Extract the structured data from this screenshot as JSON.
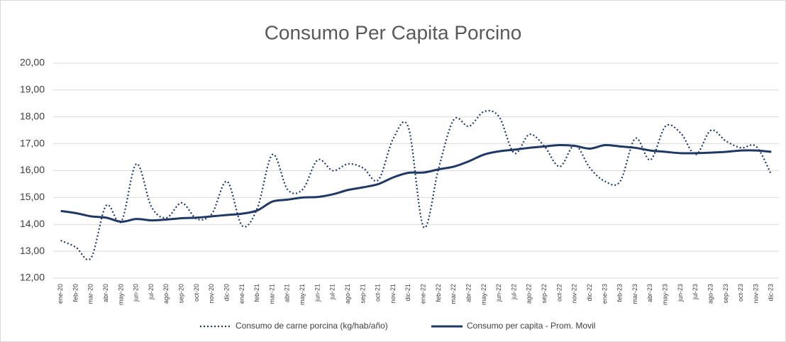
{
  "chart_data": {
    "type": "line",
    "title": "Consumo Per Capita Porcino",
    "categories": [
      "ene-20",
      "feb-20",
      "mar-20",
      "abr-20",
      "may-20",
      "jun-20",
      "jul-20",
      "ago-20",
      "sep-20",
      "oct-20",
      "nov-20",
      "dic-20",
      "ene-21",
      "feb-21",
      "mar-21",
      "abr-21",
      "may-21",
      "jun-21",
      "jul-21",
      "ago-21",
      "sep-21",
      "oct-21",
      "nov-21",
      "dic-21",
      "ene-22",
      "feb-22",
      "mar-22",
      "abr-22",
      "may-22",
      "jun-22",
      "jul-22",
      "ago-22",
      "sep-22",
      "oct-22",
      "nov-22",
      "dic-22",
      "ene-23",
      "feb-23",
      "mar-23",
      "abr-23",
      "may-23",
      "jun-23",
      "jul-23",
      "ago-23",
      "sep-23",
      "oct-23",
      "nov-23",
      "dic-23"
    ],
    "series": [
      {
        "name": "Consumo de carne porcina (kg/hab/año)",
        "color": "#203864",
        "dash": "dotted",
        "values": [
          13.4,
          13.15,
          12.75,
          14.7,
          14.1,
          16.25,
          14.65,
          14.25,
          14.8,
          14.2,
          14.4,
          15.6,
          13.95,
          14.6,
          16.6,
          15.3,
          15.3,
          16.4,
          16.0,
          16.25,
          16.1,
          15.65,
          17.2,
          17.6,
          13.9,
          16.1,
          17.9,
          17.65,
          18.2,
          18.0,
          16.65,
          17.35,
          16.9,
          16.15,
          16.95,
          16.1,
          15.6,
          15.6,
          17.2,
          16.4,
          17.65,
          17.4,
          16.6,
          17.5,
          17.1,
          16.85,
          16.9,
          15.85
        ]
      },
      {
        "name": "Consumo per capita - Prom. Movil",
        "color": "#203864",
        "dash": "solid",
        "values": [
          14.5,
          14.42,
          14.3,
          14.25,
          14.1,
          14.2,
          14.15,
          14.18,
          14.23,
          14.25,
          14.3,
          14.35,
          14.4,
          14.52,
          14.85,
          14.92,
          15.0,
          15.02,
          15.12,
          15.28,
          15.38,
          15.5,
          15.75,
          15.92,
          15.93,
          16.05,
          16.15,
          16.35,
          16.6,
          16.72,
          16.78,
          16.85,
          16.9,
          16.95,
          16.92,
          16.82,
          16.95,
          16.9,
          16.85,
          16.75,
          16.7,
          16.65,
          16.65,
          16.67,
          16.7,
          16.75,
          16.75,
          16.7
        ]
      }
    ],
    "ylim": [
      12,
      20
    ],
    "yticks": [
      {
        "value": 12,
        "label": "12,00"
      },
      {
        "value": 13,
        "label": "13,00"
      },
      {
        "value": 14,
        "label": "14,00"
      },
      {
        "value": 15,
        "label": "15,00"
      },
      {
        "value": 16,
        "label": "16,00"
      },
      {
        "value": 17,
        "label": "17,00"
      },
      {
        "value": 18,
        "label": "18,00"
      },
      {
        "value": 19,
        "label": "19,00"
      },
      {
        "value": 20,
        "label": "20,00"
      }
    ],
    "grid": true,
    "legend": "bottom"
  }
}
